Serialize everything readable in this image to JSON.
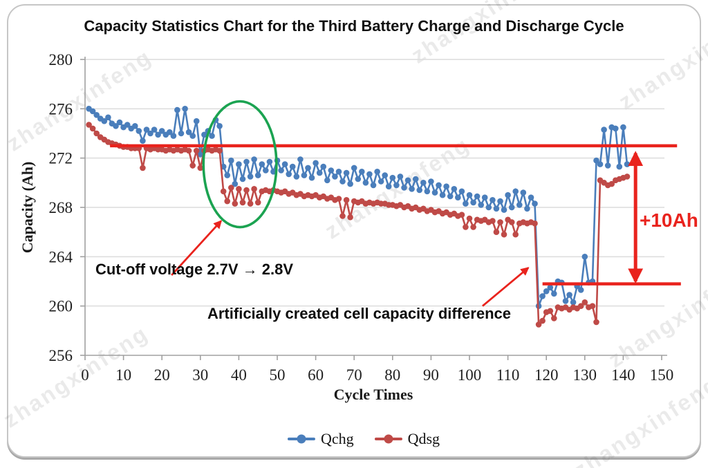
{
  "watermark": {
    "text": "zhangxinfeng"
  },
  "chart_data": {
    "type": "line",
    "title": "Capacity Statistics Chart for the Third Battery Charge and Discharge Cycle",
    "xlabel": "Cycle Times",
    "ylabel": "Capacity (Ah)",
    "xlim": [
      0,
      150
    ],
    "ylim": [
      256,
      280
    ],
    "x_ticks": [
      0,
      10,
      20,
      30,
      40,
      50,
      60,
      70,
      80,
      90,
      100,
      110,
      120,
      130,
      140,
      150
    ],
    "y_ticks": [
      256,
      260,
      264,
      268,
      272,
      276,
      280
    ],
    "grid": true,
    "legend_position": "bottom",
    "x_start": 1,
    "x_step": 1,
    "series": [
      {
        "name": "Qchg",
        "color": "#4a7ebb",
        "values": [
          276.0,
          275.8,
          275.5,
          275.2,
          275.0,
          275.3,
          274.8,
          274.6,
          274.9,
          274.5,
          274.7,
          274.4,
          274.6,
          274.2,
          273.4,
          274.3,
          274.0,
          274.3,
          273.9,
          274.2,
          273.9,
          274.1,
          273.8,
          275.9,
          274.0,
          276.0,
          274.1,
          273.8,
          275.0,
          272.3,
          273.9,
          274.2,
          273.8,
          275.1,
          274.6,
          271.3,
          270.6,
          271.8,
          269.9,
          271.5,
          270.3,
          271.7,
          270.5,
          271.9,
          270.6,
          271.5,
          271.0,
          271.7,
          270.9,
          271.8,
          271.0,
          271.5,
          270.7,
          271.3,
          270.5,
          271.9,
          270.6,
          271.2,
          270.4,
          271.6,
          270.8,
          271.3,
          270.2,
          271.0,
          270.5,
          270.9,
          270.1,
          270.8,
          269.9,
          271.2,
          270.3,
          270.9,
          270.0,
          270.7,
          269.8,
          270.9,
          270.1,
          270.6,
          269.7,
          270.4,
          269.8,
          270.5,
          269.6,
          270.2,
          269.5,
          270.3,
          269.4,
          270.0,
          269.3,
          270.1,
          269.2,
          269.8,
          269.0,
          269.7,
          268.9,
          269.5,
          268.8,
          269.3,
          268.3,
          269.0,
          268.4,
          268.9,
          268.2,
          268.8,
          268.0,
          268.6,
          267.9,
          268.5,
          267.8,
          269.0,
          268.0,
          269.3,
          268.2,
          269.2,
          267.9,
          268.8,
          268.3,
          260.0,
          260.8,
          261.2,
          261.5,
          261.0,
          262.0,
          261.9,
          260.4,
          260.9,
          260.3,
          261.6,
          261.3,
          264.0,
          261.9,
          262.0,
          271.8,
          271.5,
          274.3,
          271.4,
          274.5,
          274.4,
          271.3,
          274.5,
          271.5
        ]
      },
      {
        "name": "Qdsg",
        "color": "#bf4a47",
        "values": [
          274.7,
          274.4,
          274.0,
          273.7,
          273.5,
          273.3,
          273.2,
          273.1,
          273.0,
          272.9,
          272.9,
          272.8,
          272.8,
          272.8,
          271.2,
          272.8,
          272.7,
          272.8,
          272.7,
          272.7,
          272.6,
          272.7,
          272.6,
          272.7,
          272.6,
          272.7,
          272.6,
          271.4,
          272.6,
          271.2,
          272.6,
          272.7,
          272.6,
          272.7,
          272.6,
          269.3,
          268.5,
          269.6,
          268.3,
          269.5,
          268.4,
          269.4,
          268.3,
          269.5,
          268.4,
          269.3,
          269.4,
          269.3,
          269.4,
          269.3,
          269.2,
          269.3,
          269.1,
          269.2,
          269.0,
          269.1,
          268.9,
          269.0,
          268.9,
          269.0,
          268.8,
          268.9,
          268.7,
          268.8,
          268.6,
          268.7,
          267.3,
          268.6,
          267.2,
          268.5,
          268.4,
          268.5,
          268.3,
          268.4,
          268.3,
          268.4,
          268.3,
          268.3,
          268.2,
          268.2,
          268.1,
          268.2,
          268.0,
          268.1,
          267.9,
          268.0,
          267.8,
          267.9,
          267.7,
          267.8,
          267.6,
          267.7,
          267.5,
          267.6,
          267.4,
          267.5,
          267.3,
          267.4,
          266.4,
          267.1,
          266.4,
          267.0,
          266.9,
          267.0,
          266.8,
          266.9,
          266.0,
          266.8,
          265.8,
          267.0,
          266.8,
          265.8,
          266.7,
          266.8,
          266.7,
          266.8,
          266.7,
          258.5,
          258.8,
          259.5,
          259.6,
          259.0,
          259.9,
          259.8,
          259.9,
          259.7,
          259.9,
          259.8,
          260.0,
          260.3,
          259.9,
          260.0,
          258.7,
          270.2,
          270.0,
          269.8,
          269.9,
          270.2,
          270.3,
          270.4,
          270.5
        ]
      }
    ],
    "annotations": {
      "cutoff_text": "Cut-off voltage 2.7V → 2.8V",
      "artificial_text": "Artificially created cell capacity difference",
      "delta_label": "+10Ah",
      "accent_color": "#e9231d",
      "ellipse_color": "#1ba351",
      "ref_lines": [
        {
          "value": 273.0,
          "cycle_from": 6.5,
          "cycle_to": 154
        },
        {
          "value": 261.8,
          "cycle_from": 119,
          "cycle_to": 155
        }
      ],
      "delta_arrow": {
        "cycle": 143.2,
        "value_from": 272.4,
        "value_to": 262.0
      },
      "pointer_arrows": [
        {
          "from_cycle": 22.5,
          "from_value": 262.5,
          "to_cycle": 35.4,
          "to_value": 266.9
        },
        {
          "from_cycle": 103.4,
          "from_value": 260.0,
          "to_cycle": 115.3,
          "to_value": 263.1
        }
      ],
      "ellipse": {
        "cycle": 40.3,
        "value": 271.5,
        "rx_cycles": 9.5,
        "ry_ah": 5.1
      }
    }
  }
}
